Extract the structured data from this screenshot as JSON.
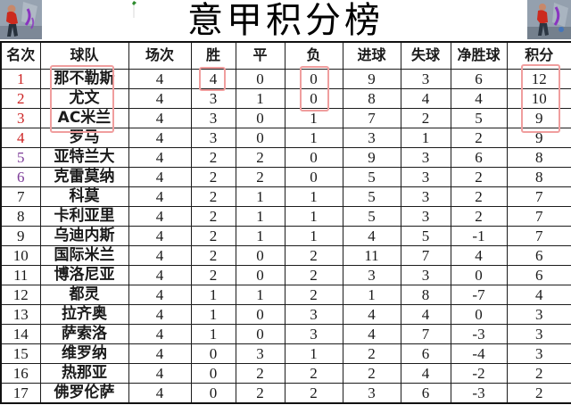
{
  "title": "意甲积分榜",
  "chart_data": {
    "type": "table",
    "title": "意甲积分榜",
    "columns": [
      "名次",
      "球队",
      "场次",
      "胜",
      "平",
      "负",
      "进球",
      "失球",
      "净胜球",
      "积分"
    ],
    "rows": [
      [
        1,
        "那不勒斯",
        4,
        4,
        0,
        0,
        9,
        3,
        6,
        12
      ],
      [
        2,
        "尤文",
        4,
        3,
        1,
        0,
        8,
        4,
        4,
        10
      ],
      [
        3,
        "AC米兰",
        4,
        3,
        0,
        1,
        7,
        2,
        5,
        9
      ],
      [
        4,
        "罗马",
        4,
        3,
        0,
        1,
        3,
        1,
        2,
        9
      ],
      [
        5,
        "亚特兰大",
        4,
        2,
        2,
        0,
        9,
        3,
        6,
        8
      ],
      [
        6,
        "克雷莫纳",
        4,
        2,
        2,
        0,
        5,
        3,
        2,
        8
      ],
      [
        7,
        "科莫",
        4,
        2,
        1,
        1,
        5,
        3,
        2,
        7
      ],
      [
        8,
        "卡利亚里",
        4,
        2,
        1,
        1,
        5,
        3,
        2,
        7
      ],
      [
        9,
        "乌迪内斯",
        4,
        2,
        1,
        1,
        4,
        5,
        -1,
        7
      ],
      [
        10,
        "国际米兰",
        4,
        2,
        0,
        2,
        11,
        7,
        4,
        6
      ],
      [
        11,
        "博洛尼亚",
        4,
        2,
        0,
        2,
        3,
        3,
        0,
        6
      ],
      [
        12,
        "都灵",
        4,
        1,
        1,
        2,
        1,
        8,
        -7,
        4
      ],
      [
        13,
        "拉齐奥",
        4,
        1,
        0,
        3,
        4,
        4,
        0,
        3
      ],
      [
        14,
        "萨索洛",
        4,
        1,
        0,
        3,
        4,
        7,
        -3,
        3
      ],
      [
        15,
        "维罗纳",
        4,
        0,
        3,
        1,
        2,
        6,
        -4,
        3
      ],
      [
        16,
        "热那亚",
        4,
        0,
        2,
        2,
        2,
        4,
        -2,
        2
      ],
      [
        17,
        "佛罗伦萨",
        4,
        0,
        2,
        2,
        3,
        6,
        -3,
        2
      ]
    ]
  },
  "rank_styles": {
    "red_ranks": [
      1,
      2,
      3,
      4
    ],
    "purple_ranks": [
      5,
      6
    ]
  },
  "highlights": [
    {
      "column": "球队",
      "ranks": [
        1,
        2,
        3
      ]
    },
    {
      "column": "胜",
      "ranks": [
        1
      ]
    },
    {
      "column": "负",
      "ranks": [
        1,
        2
      ]
    },
    {
      "column": "积分",
      "ranks": [
        1,
        2,
        3
      ]
    }
  ],
  "colors": {
    "rank_top4": "#cc2222",
    "rank_5_6": "#7d3c98",
    "highlight_box": "#f09e9e",
    "table_border": "#1a1a1a",
    "title_text": "#000000"
  },
  "icons": {
    "corner_left": "player-photo-thumbnail",
    "corner_right": "player-photo-thumbnail"
  }
}
